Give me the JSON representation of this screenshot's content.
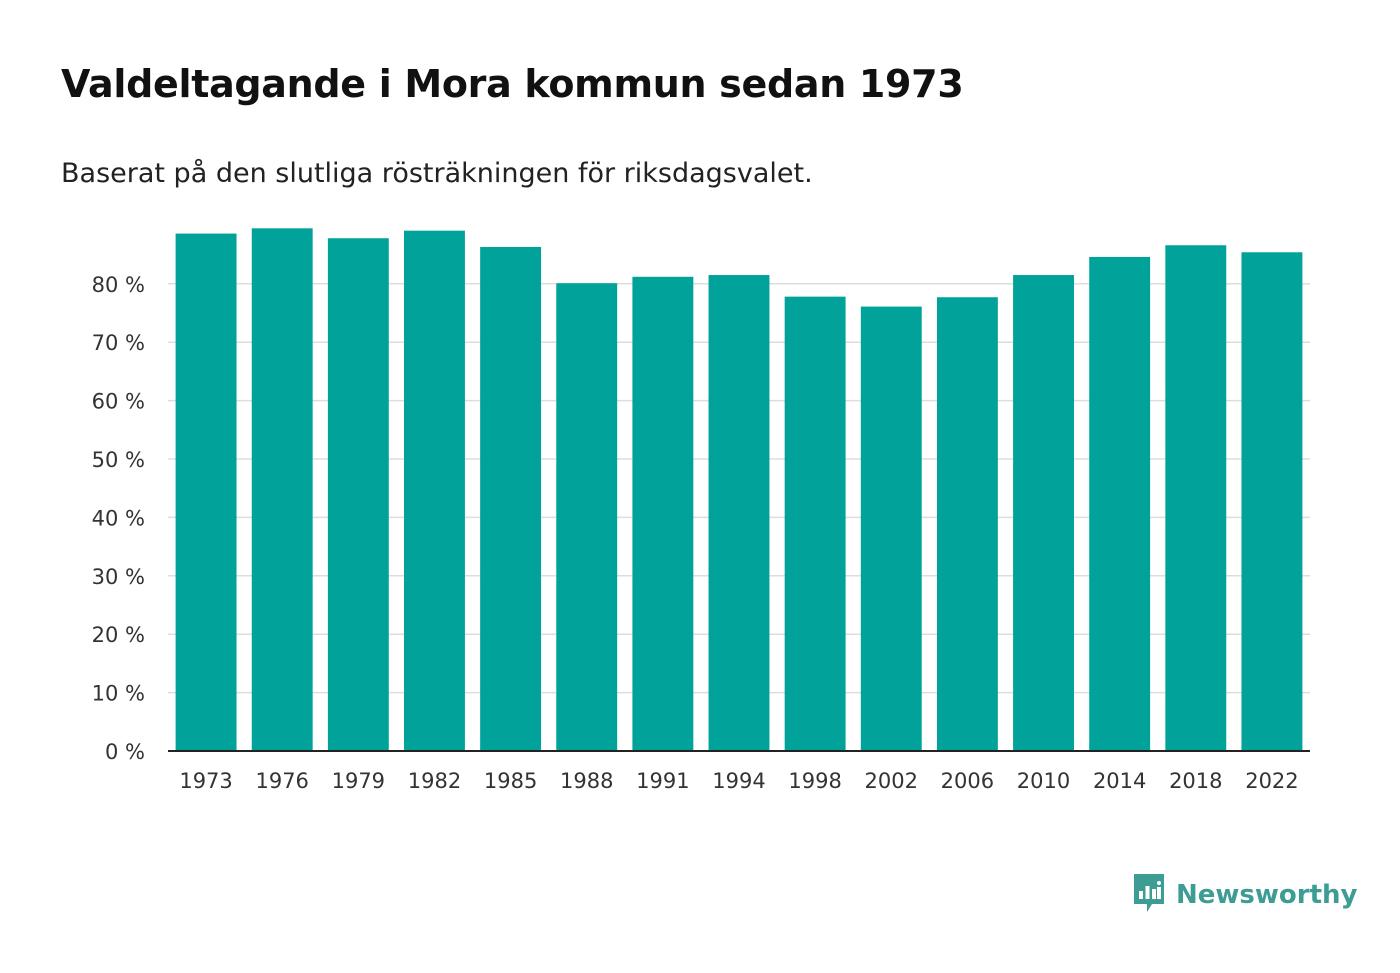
{
  "colors": {
    "bar": "#00a29a",
    "grid": "#dddddd",
    "axis": "#222222",
    "brand": "#3d9c93"
  },
  "brand": {
    "name": "Newsworthy",
    "icon": "bar-chart-speech-bubble-icon"
  },
  "chart_data": {
    "type": "bar",
    "title": "Valdeltagande i Mora kommun sedan 1973",
    "subtitle": "Baserat på den slutliga rösträkningen för riksdagsvalet.",
    "xlabel": "",
    "ylabel": "",
    "ylim": [
      0,
      90
    ],
    "grid": true,
    "y_ticks": [
      0,
      10,
      20,
      30,
      40,
      50,
      60,
      70,
      80
    ],
    "y_tick_labels": [
      "0 %",
      "10 %",
      "20 %",
      "30 %",
      "40 %",
      "50 %",
      "60 %",
      "70 %",
      "80 %"
    ],
    "categories": [
      "1973",
      "1976",
      "1979",
      "1982",
      "1985",
      "1988",
      "1991",
      "1994",
      "1998",
      "2002",
      "2006",
      "2010",
      "2014",
      "2018",
      "2022"
    ],
    "values": [
      88.6,
      89.5,
      87.8,
      89.1,
      86.3,
      80.1,
      81.2,
      81.5,
      77.8,
      76.1,
      77.7,
      81.5,
      84.6,
      86.6,
      85.4
    ]
  }
}
